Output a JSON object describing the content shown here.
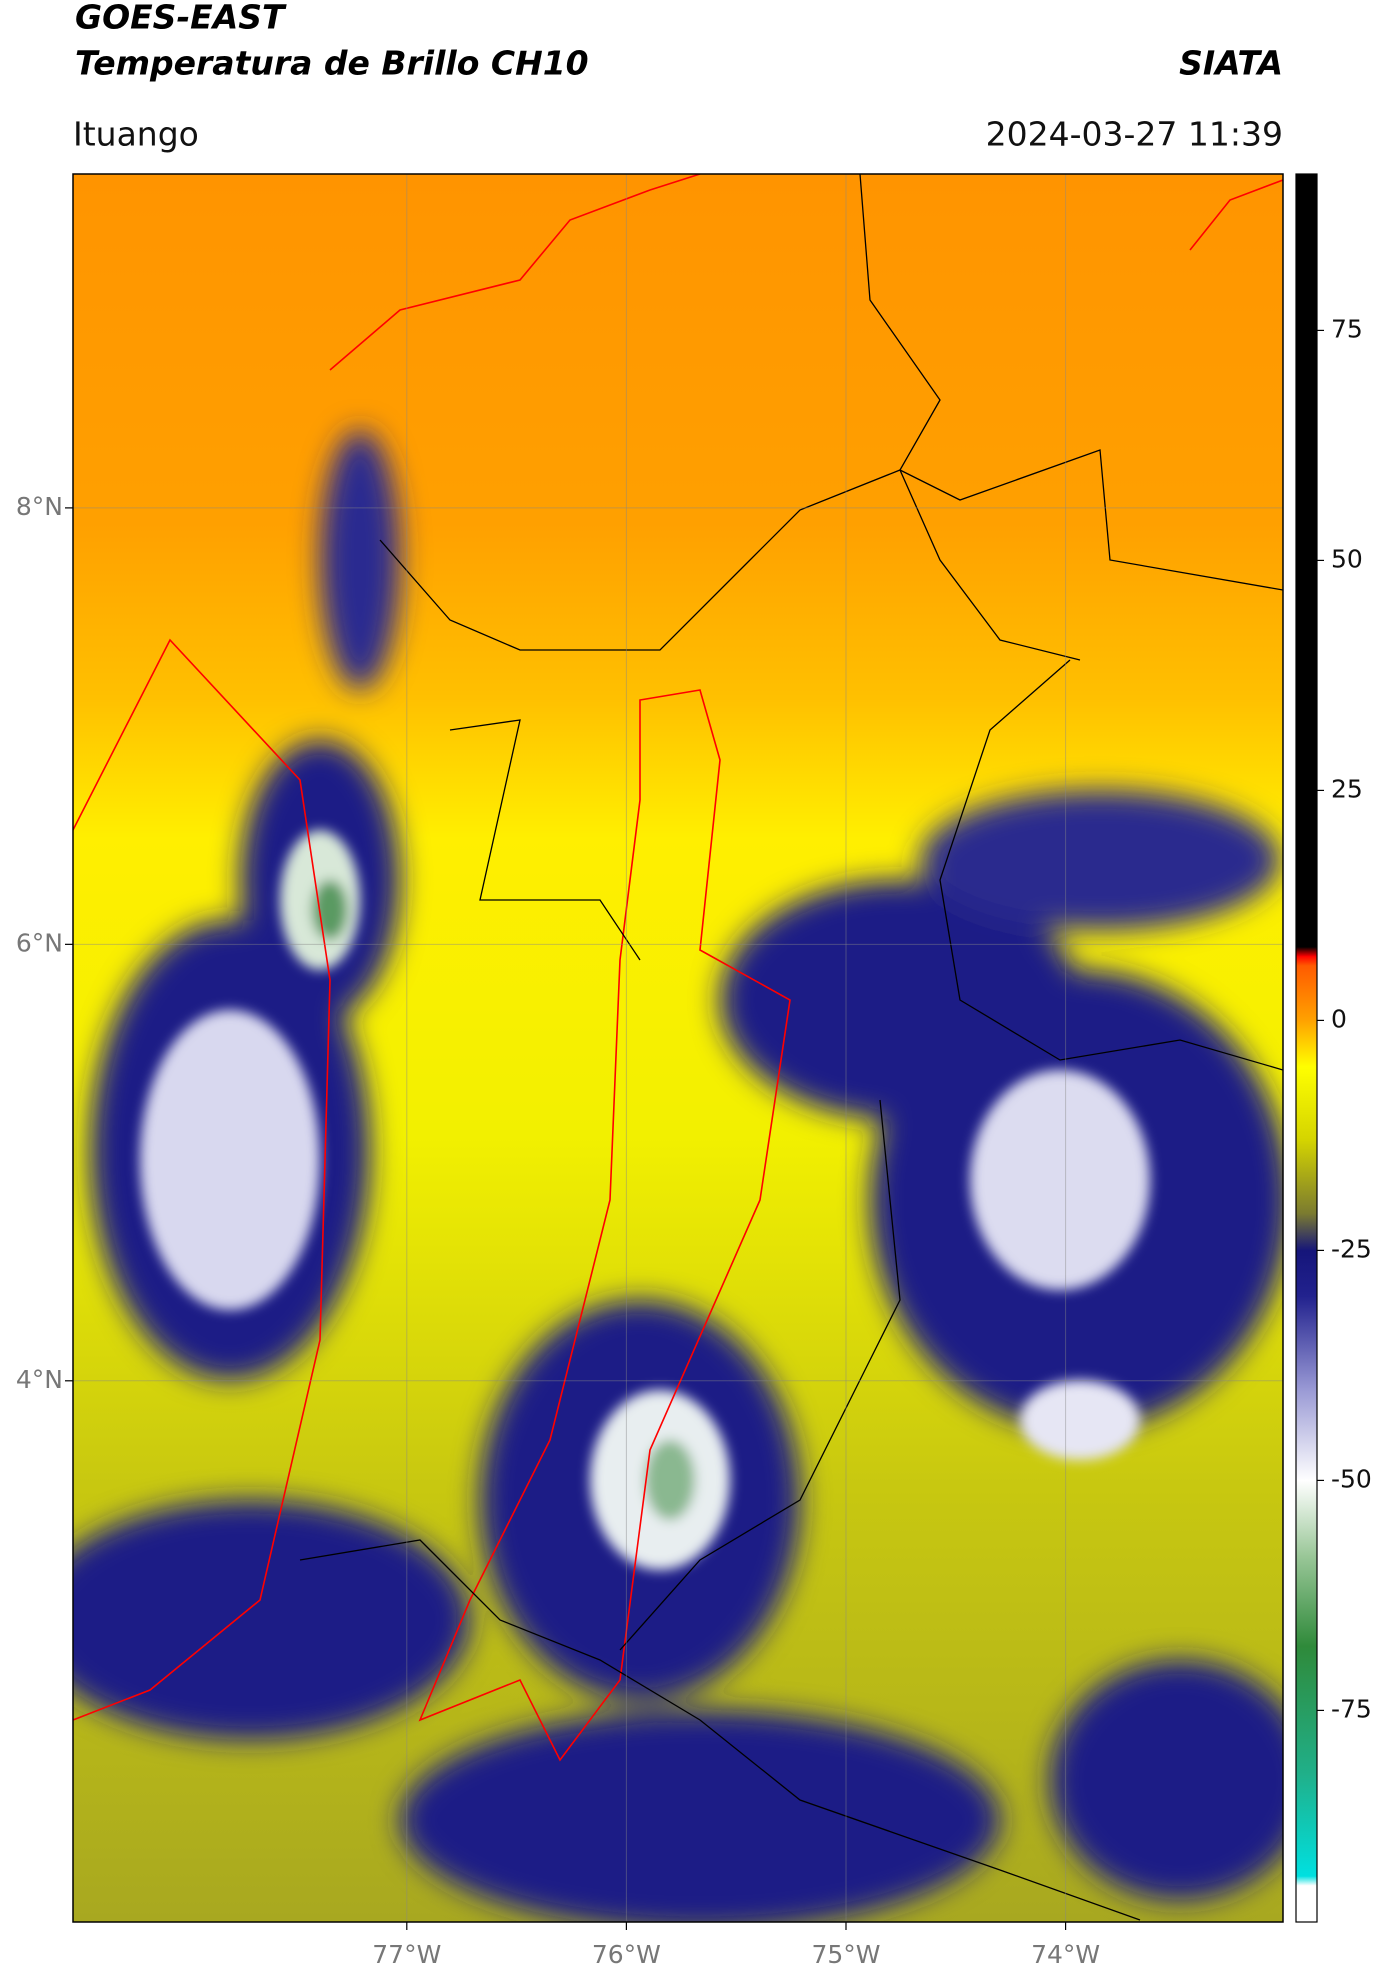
{
  "header": {
    "title": "GOES-EAST",
    "subtitle": "Temperatura de Brillo CH10",
    "brand": "SIATA",
    "location": "Ituango",
    "datetime": "2024-03-27 11:39"
  },
  "map": {
    "xlim": [
      -78.52,
      -73.01
    ],
    "ylim": [
      1.52,
      9.53
    ],
    "xticks": [
      {
        "value": -77,
        "label": "77°W"
      },
      {
        "value": -76,
        "label": "76°W"
      },
      {
        "value": -75,
        "label": "75°W"
      },
      {
        "value": -74,
        "label": "74°W"
      }
    ],
    "yticks": [
      {
        "value": 8,
        "label": "8°N"
      },
      {
        "value": 6,
        "label": "6°N"
      },
      {
        "value": 4,
        "label": "4°N"
      }
    ],
    "grid": true
  },
  "colorbar": {
    "lim": [
      -98,
      92
    ],
    "ticks": [
      75,
      50,
      25,
      0,
      -25,
      -50,
      -75
    ],
    "colormap": [
      {
        "value": -98,
        "color": "#ffffff"
      },
      {
        "value": -94,
        "color": "#ffffff"
      },
      {
        "value": -93,
        "color": "#00e0e0"
      },
      {
        "value": -82,
        "color": "#20b08a"
      },
      {
        "value": -68,
        "color": "#2f8a3a"
      },
      {
        "value": -58,
        "color": "#9cc89a"
      },
      {
        "value": -50,
        "color": "#ffffff"
      },
      {
        "value": -40,
        "color": "#9898d4"
      },
      {
        "value": -30,
        "color": "#22228e"
      },
      {
        "value": -25,
        "color": "#15157a"
      },
      {
        "value": -21,
        "color": "#7a7a30"
      },
      {
        "value": -13,
        "color": "#d4d400"
      },
      {
        "value": -5,
        "color": "#ffff00"
      },
      {
        "value": 0,
        "color": "#ffa200"
      },
      {
        "value": 6,
        "color": "#ff5a00"
      },
      {
        "value": 7,
        "color": "#ff0000"
      },
      {
        "value": 8,
        "color": "#000000"
      },
      {
        "value": 92,
        "color": "#000000"
      }
    ]
  }
}
